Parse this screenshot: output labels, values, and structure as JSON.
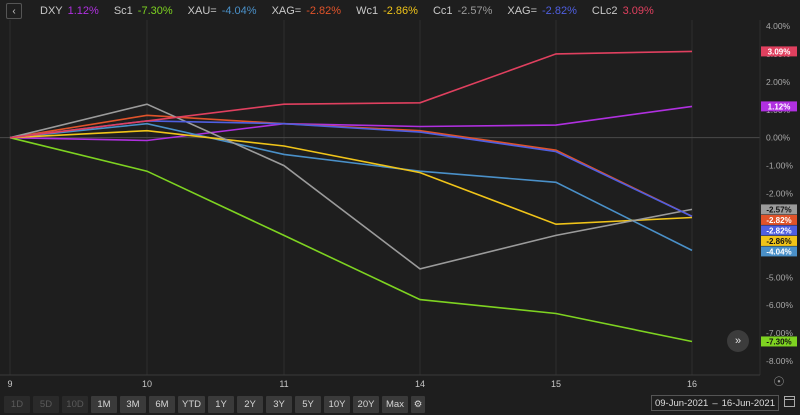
{
  "legend": [
    {
      "symbol": "DXY",
      "change": "1.12%",
      "color": "#b030e0"
    },
    {
      "symbol": "Sc1",
      "change": "-7.30%",
      "color": "#7ed321"
    },
    {
      "symbol": "XAU=",
      "change": "-4.04%",
      "color": "#4a90c8"
    },
    {
      "symbol": "XAG=",
      "change": "-2.82%",
      "color": "#e0532a"
    },
    {
      "symbol": "Wc1",
      "change": "-2.86%",
      "color": "#f0c419"
    },
    {
      "symbol": "Cc1",
      "change": "-2.57%",
      "color": "#9b9b9b"
    },
    {
      "symbol": "XAG=",
      "change": "-2.82%",
      "color": "#4f5fe0"
    },
    {
      "symbol": "CLc2",
      "change": "3.09%",
      "color": "#e0405f"
    }
  ],
  "range_buttons": [
    {
      "label": "1D",
      "enabled": false
    },
    {
      "label": "5D",
      "enabled": false
    },
    {
      "label": "10D",
      "enabled": false
    },
    {
      "label": "1M",
      "enabled": true
    },
    {
      "label": "3M",
      "enabled": true
    },
    {
      "label": "6M",
      "enabled": true
    },
    {
      "label": "YTD",
      "enabled": true
    },
    {
      "label": "1Y",
      "enabled": true
    },
    {
      "label": "2Y",
      "enabled": true
    },
    {
      "label": "3Y",
      "enabled": true
    },
    {
      "label": "5Y",
      "enabled": true
    },
    {
      "label": "10Y",
      "enabled": true
    },
    {
      "label": "20Y",
      "enabled": true
    },
    {
      "label": "Max",
      "enabled": true
    }
  ],
  "date_range": {
    "start": "09-Jun-2021",
    "separator": "–",
    "end": "16-Jun-2021"
  },
  "icons": {
    "back": "chevron-left-icon",
    "settings": "gear-icon",
    "crosshair": "crosshair-icon",
    "calendar": "calendar-icon",
    "navigate": "chevron-double-right-icon"
  },
  "chart_data": {
    "type": "line",
    "x": [
      9,
      10,
      11,
      14,
      15,
      16
    ],
    "x_tick_labels": [
      "9",
      "10",
      "11",
      "14",
      "15",
      "16"
    ],
    "ylim": [
      -8.0,
      4.0
    ],
    "y_ticks": [
      4.0,
      3.0,
      2.0,
      1.0,
      0.0,
      -1.0,
      -2.0,
      -3.0,
      -4.0,
      -5.0,
      -6.0,
      -7.0,
      -8.0
    ],
    "y_tick_labels": [
      "4.00%",
      "3.00%",
      "2.00%",
      "1.00%",
      "0.00%",
      "-1.00%",
      "-2.00%",
      "-3.00%",
      "-4.00%",
      "-5.00%",
      "-6.00%",
      "-7.00%",
      "-8.00%"
    ],
    "grid": "vertical",
    "zero_line": true,
    "series": [
      {
        "name": "DXY",
        "color": "#b030e0",
        "values": [
          0.0,
          -0.1,
          0.5,
          0.4,
          0.45,
          1.12
        ],
        "label": "1.12%"
      },
      {
        "name": "Sc1",
        "color": "#7ed321",
        "values": [
          0.0,
          -1.2,
          -3.5,
          -5.8,
          -6.3,
          -7.3
        ],
        "label": "-7.30%"
      },
      {
        "name": "XAU=",
        "color": "#4a90c8",
        "values": [
          0.0,
          0.5,
          -0.6,
          -1.2,
          -1.6,
          -4.04
        ],
        "label": "-4.04%"
      },
      {
        "name": "XAG=",
        "color": "#e0532a",
        "values": [
          0.0,
          0.8,
          0.5,
          0.25,
          -0.45,
          -2.82
        ],
        "label": "-2.82%"
      },
      {
        "name": "Wc1",
        "color": "#f0c419",
        "values": [
          0.0,
          0.25,
          -0.3,
          -1.25,
          -3.1,
          -2.86
        ],
        "label": "-2.86%"
      },
      {
        "name": "Cc1",
        "color": "#9b9b9b",
        "values": [
          0.0,
          1.2,
          -1.0,
          -4.7,
          -3.5,
          -2.57
        ],
        "label": "-2.57%"
      },
      {
        "name": "XAG=",
        "color": "#4f5fe0",
        "values": [
          0.0,
          0.6,
          0.5,
          0.2,
          -0.5,
          -2.82
        ],
        "label": "-2.82%"
      },
      {
        "name": "CLc2",
        "color": "#e0405f",
        "values": [
          0.0,
          0.6,
          1.2,
          1.25,
          3.0,
          3.09
        ],
        "label": "3.09%"
      }
    ]
  }
}
